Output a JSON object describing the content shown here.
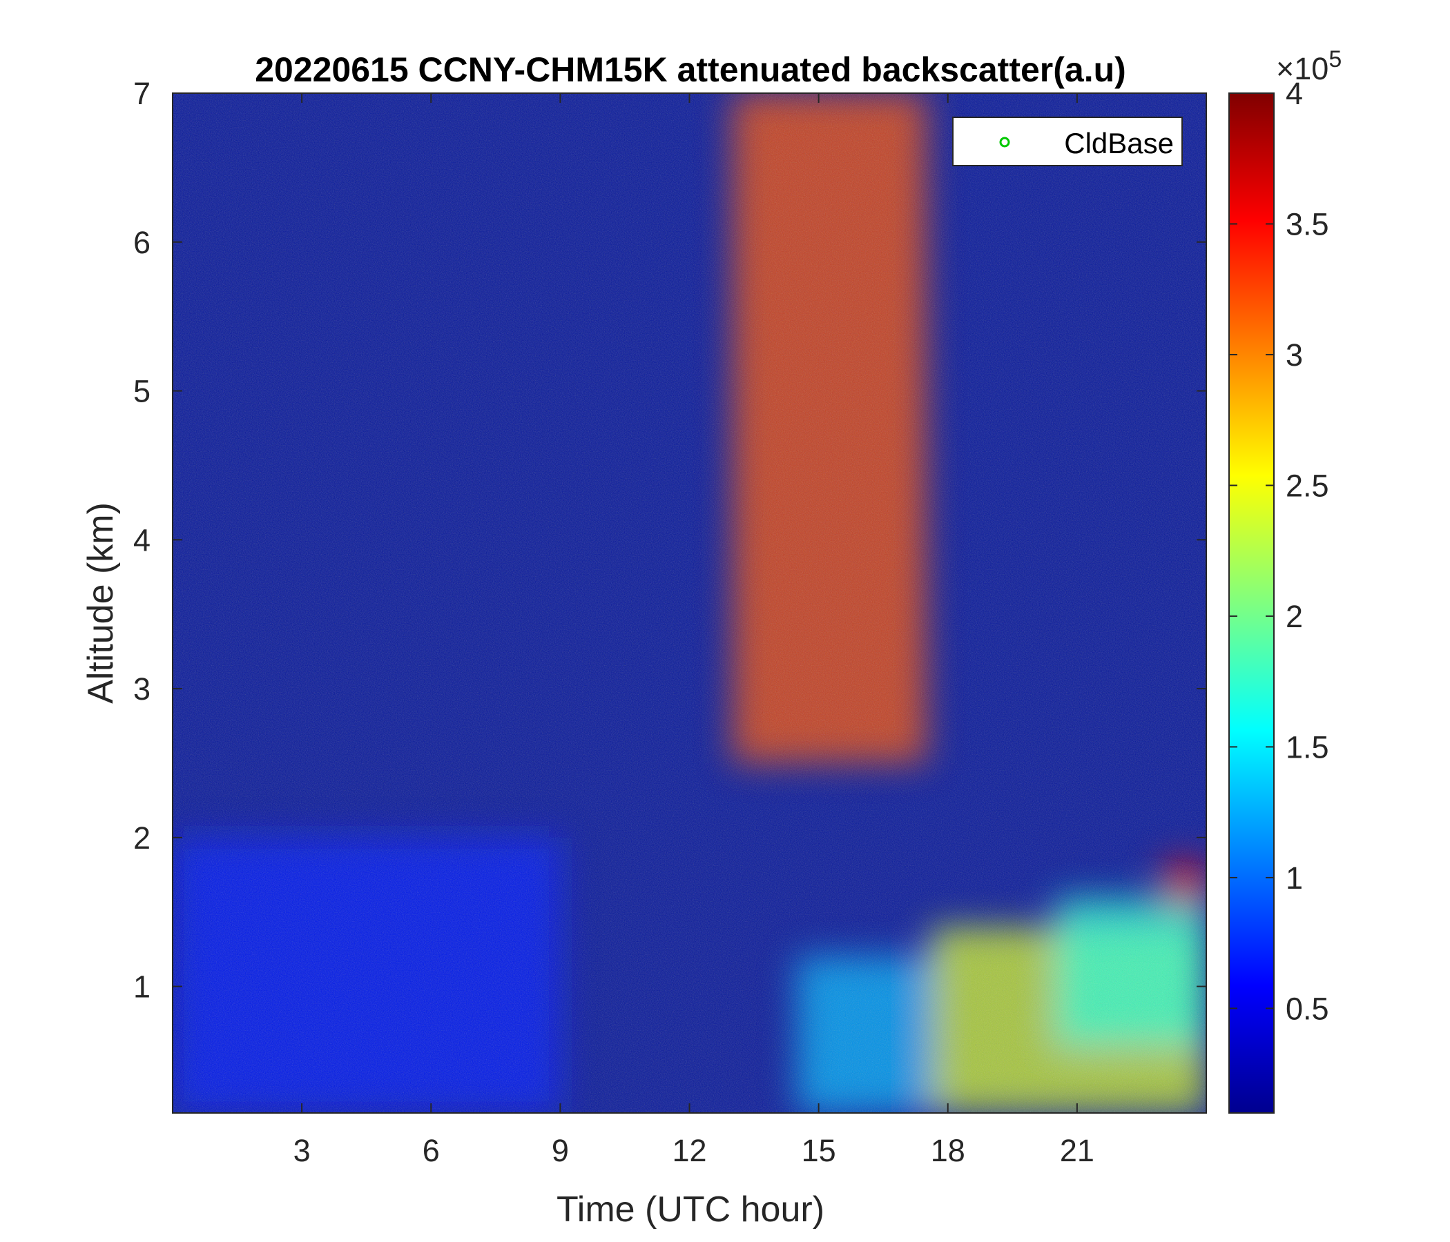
{
  "chart_data": {
    "type": "heatmap",
    "title": "20220615 CCNY-CHM15K attenuated backscatter(a.u)",
    "xlabel": "Time (UTC hour)",
    "ylabel": "Altitude (km)",
    "xlim": [
      0,
      24
    ],
    "ylim": [
      0.15,
      7
    ],
    "xticks": [
      3,
      6,
      9,
      12,
      15,
      18,
      21
    ],
    "yticks": [
      1,
      2,
      3,
      4,
      5,
      6,
      7
    ],
    "colorbar": {
      "colormap": "jet",
      "range": [
        0.1,
        4
      ],
      "ticks": [
        0.5,
        1,
        1.5,
        2,
        2.5,
        3,
        3.5,
        4
      ],
      "multiplier_prefix": "×10",
      "multiplier_exponent": "5"
    },
    "legend": {
      "position": "top-right",
      "entries": [
        {
          "name": "CldBase",
          "marker": "circle",
          "color": "#00c800"
        }
      ]
    },
    "features": [
      {
        "x": [
          17.6,
          24
        ],
        "y": [
          0.15,
          1.4
        ],
        "level": 2.4
      },
      {
        "x": [
          20.5,
          24
        ],
        "y": [
          0.6,
          1.6
        ],
        "level": 1.7
      },
      {
        "x": [
          23.0,
          24
        ],
        "y": [
          1.55,
          1.85
        ],
        "level": 3.6
      },
      {
        "x": [
          14.5,
          17.6
        ],
        "y": [
          0.15,
          1.2
        ],
        "level": 1.3
      },
      {
        "x": [
          13.0,
          17.5
        ],
        "y": [
          2.5,
          7.0
        ],
        "level": 3.2
      },
      {
        "x": [
          0.0,
          9.0
        ],
        "y": [
          0.15,
          2.0
        ],
        "level": 0.7
      }
    ]
  }
}
